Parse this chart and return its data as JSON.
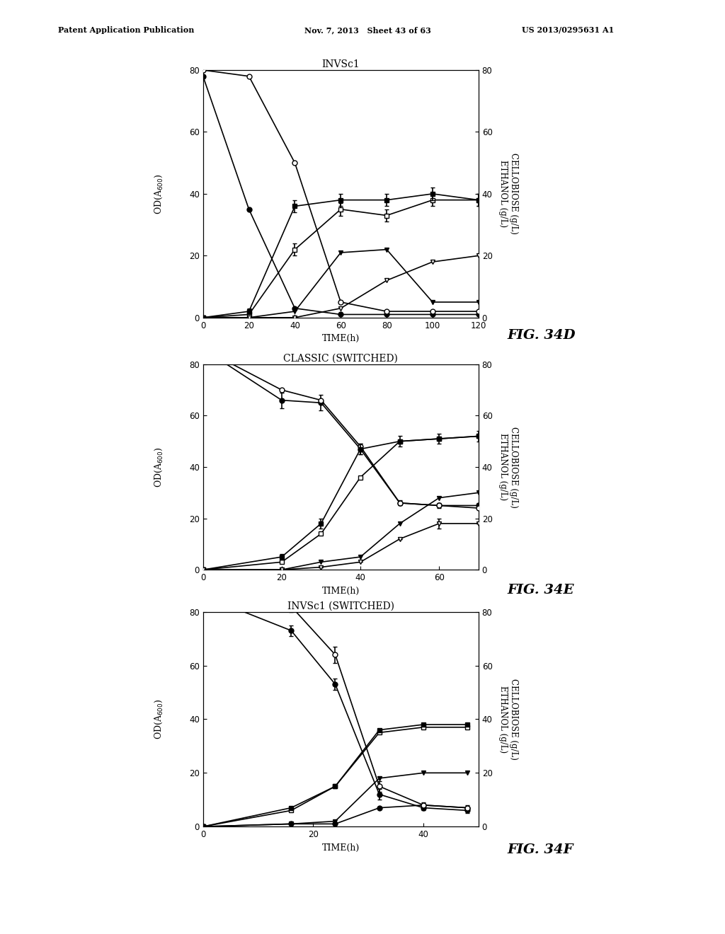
{
  "header": {
    "left": "Patent Application Publication",
    "mid": "Nov. 7, 2013   Sheet 43 of 63",
    "right": "US 2013/0295631 A1"
  },
  "fig_labels": [
    "FIG. 34D",
    "FIG. 34E",
    "FIG. 34F"
  ],
  "plots": [
    {
      "title": "INVSc1",
      "xlabel": "TIME(h)",
      "xlim": [
        0,
        120
      ],
      "ylim": [
        0,
        80
      ],
      "xticks": [
        0,
        20,
        40,
        60,
        80,
        100,
        120
      ],
      "yticks": [
        0,
        20,
        40,
        60,
        80
      ],
      "series": [
        {
          "x": [
            0,
            20,
            40,
            60,
            80,
            100,
            120
          ],
          "y": [
            80,
            78,
            50,
            5,
            2,
            2,
            2
          ],
          "marker": "o",
          "mfc": "white",
          "axis": "right",
          "yerr": null
        },
        {
          "x": [
            0,
            20,
            40,
            60,
            80,
            100,
            120
          ],
          "y": [
            78,
            35,
            3,
            1,
            1,
            1,
            1
          ],
          "marker": "o",
          "mfc": "black",
          "axis": "left",
          "yerr": null
        },
        {
          "x": [
            0,
            20,
            40,
            60,
            80,
            100,
            120
          ],
          "y": [
            0,
            2,
            36,
            38,
            38,
            40,
            38
          ],
          "marker": "s",
          "mfc": "black",
          "axis": "right",
          "yerr": [
            0,
            1,
            2,
            2,
            2,
            2,
            2
          ]
        },
        {
          "x": [
            0,
            20,
            40,
            60,
            80,
            100,
            120
          ],
          "y": [
            0,
            1,
            22,
            35,
            33,
            38,
            38
          ],
          "marker": "s",
          "mfc": "white",
          "axis": "left",
          "yerr": [
            0,
            0,
            2,
            2,
            2,
            2,
            2
          ]
        },
        {
          "x": [
            0,
            20,
            40,
            60,
            80,
            100,
            120
          ],
          "y": [
            0,
            0,
            2,
            21,
            22,
            5,
            5
          ],
          "marker": "v",
          "mfc": "black",
          "axis": "right",
          "yerr": null
        },
        {
          "x": [
            0,
            20,
            40,
            60,
            80,
            100,
            120
          ],
          "y": [
            0,
            0,
            0,
            3,
            12,
            18,
            20
          ],
          "marker": "v",
          "mfc": "white",
          "axis": "right",
          "yerr": null
        }
      ]
    },
    {
      "title": "CLASSIC (SWITCHED)",
      "xlabel": "TIME(h)",
      "xlim": [
        0,
        70
      ],
      "ylim": [
        0,
        80
      ],
      "xticks": [
        0,
        20,
        40,
        60
      ],
      "yticks": [
        0,
        20,
        40,
        60,
        80
      ],
      "series": [
        {
          "x": [
            0,
            20,
            30,
            40,
            50,
            60,
            70
          ],
          "y": [
            86,
            70,
            66,
            48,
            26,
            25,
            24
          ],
          "marker": "o",
          "mfc": "white",
          "axis": "right",
          "yerr": null
        },
        {
          "x": [
            0,
            20,
            30,
            40,
            50,
            60,
            70
          ],
          "y": [
            86,
            66,
            65,
            47,
            26,
            25,
            25
          ],
          "marker": "o",
          "mfc": "black",
          "axis": "left",
          "yerr": [
            0,
            3,
            3,
            2,
            1,
            1,
            1
          ]
        },
        {
          "x": [
            0,
            20,
            30,
            40,
            50,
            60,
            70
          ],
          "y": [
            0,
            5,
            18,
            47,
            50,
            51,
            52
          ],
          "marker": "s",
          "mfc": "black",
          "axis": "right",
          "yerr": [
            0,
            1,
            2,
            2,
            2,
            2,
            2
          ]
        },
        {
          "x": [
            0,
            20,
            30,
            40,
            50,
            60,
            70
          ],
          "y": [
            0,
            3,
            14,
            36,
            50,
            51,
            52
          ],
          "marker": "s",
          "mfc": "white",
          "axis": "left",
          "yerr": null
        },
        {
          "x": [
            0,
            20,
            30,
            40,
            50,
            60,
            70
          ],
          "y": [
            0,
            0,
            3,
            5,
            18,
            28,
            30
          ],
          "marker": "v",
          "mfc": "black",
          "axis": "right",
          "yerr": null
        },
        {
          "x": [
            0,
            20,
            30,
            40,
            50,
            60,
            70
          ],
          "y": [
            0,
            0,
            1,
            3,
            12,
            18,
            18
          ],
          "marker": "v",
          "mfc": "white",
          "axis": "right",
          "yerr": [
            0,
            0,
            0,
            0,
            0,
            2,
            0
          ]
        }
      ]
    },
    {
      "title": "INVSc1 (SWITCHED)",
      "xlabel": "TIME(h)",
      "xlim": [
        0,
        50
      ],
      "ylim": [
        0,
        80
      ],
      "xticks": [
        0,
        20,
        40
      ],
      "yticks": [
        0,
        20,
        40,
        60,
        80
      ],
      "series": [
        {
          "x": [
            0,
            16,
            24,
            32,
            40,
            48
          ],
          "y": [
            86,
            82,
            64,
            15,
            8,
            7
          ],
          "marker": "o",
          "mfc": "white",
          "axis": "right",
          "yerr": [
            0,
            2,
            3,
            2,
            1,
            1
          ]
        },
        {
          "x": [
            0,
            16,
            24,
            32,
            40,
            48
          ],
          "y": [
            86,
            73,
            53,
            12,
            7,
            6
          ],
          "marker": "o",
          "mfc": "black",
          "axis": "left",
          "yerr": [
            0,
            2,
            2,
            2,
            1,
            1
          ]
        },
        {
          "x": [
            0,
            16,
            24,
            32,
            40,
            48
          ],
          "y": [
            0,
            7,
            15,
            36,
            38,
            38
          ],
          "marker": "s",
          "mfc": "black",
          "axis": "right",
          "yerr": null
        },
        {
          "x": [
            0,
            16,
            24,
            32,
            40,
            48
          ],
          "y": [
            0,
            6,
            15,
            35,
            37,
            37
          ],
          "marker": "s",
          "mfc": "white",
          "axis": "left",
          "yerr": null
        },
        {
          "x": [
            0,
            16,
            24,
            32,
            40,
            48
          ],
          "y": [
            0,
            1,
            2,
            18,
            20,
            20
          ],
          "marker": "v",
          "mfc": "black",
          "axis": "right",
          "yerr": null
        },
        {
          "x": [
            0,
            16,
            24,
            32,
            40,
            48
          ],
          "y": [
            0,
            1,
            1,
            7,
            8,
            7
          ],
          "marker": "o",
          "mfc": "black",
          "axis": "left",
          "yerr": null,
          "small": true
        }
      ]
    }
  ],
  "right_label": "CELLOBIOSE (g/L)\nETHANOL (g/L)"
}
